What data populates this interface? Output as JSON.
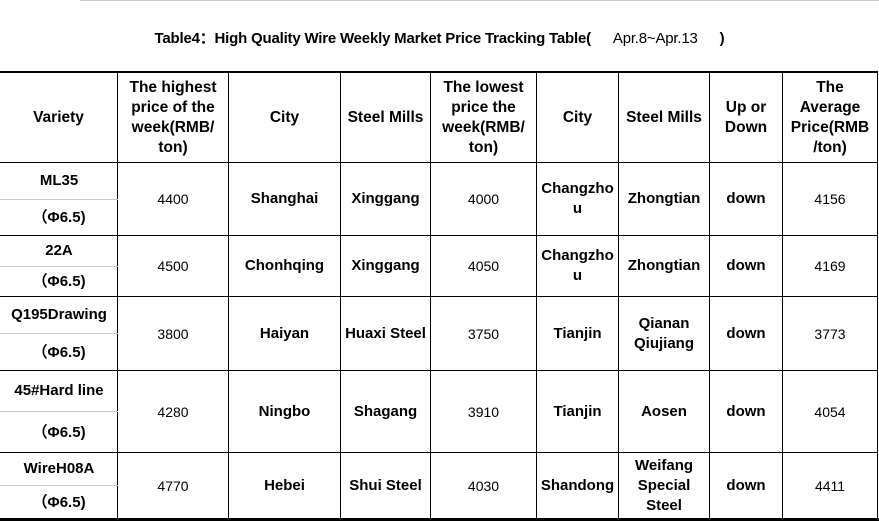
{
  "title": {
    "main": "Table4：High Quality Wire Weekly Market Price Tracking Table(",
    "date": "Apr.8~Apr.13",
    "close": ")"
  },
  "headers": [
    "Variety",
    "The highest price of the week(RMB/ ton)",
    "City",
    "Steel Mills",
    "The lowest price the week(RMB/ ton)",
    "City",
    "Steel Mills",
    "Up or Down",
    "The Average Price(RMB /ton)"
  ],
  "rows": [
    {
      "variety": "ML35",
      "spec": "（Φ6.5)",
      "high": "4400",
      "high_city": "Shanghai",
      "high_mill": "Xinggang",
      "low": "4000",
      "low_city": "Changzhou",
      "low_mill": "Zhongtian",
      "trend": "down",
      "avg": "4156"
    },
    {
      "variety": "22A",
      "spec": "（Φ6.5)",
      "high": "4500",
      "high_city": "Chonhqing",
      "high_mill": "Xinggang",
      "low": "4050",
      "low_city": "Changzhou",
      "low_mill": "Zhongtian",
      "trend": "down",
      "avg": "4169"
    },
    {
      "variety": "Q195Drawing",
      "spec": "（Φ6.5)",
      "high": "3800",
      "high_city": "Haiyan",
      "high_mill": "Huaxi Steel",
      "low": "3750",
      "low_city": "Tianjin",
      "low_mill": "Qianan Qiujiang",
      "trend": "down",
      "avg": "3773"
    },
    {
      "variety": "45#Hard line",
      "spec": "（Φ6.5)",
      "high": "4280",
      "high_city": "Ningbo",
      "high_mill": "Shagang",
      "low": "3910",
      "low_city": "Tianjin",
      "low_mill": "Aosen",
      "trend": "down",
      "avg": "4054"
    },
    {
      "variety": "WireH08A",
      "spec": "（Φ6.5)",
      "high": "4770",
      "high_city": "Hebei",
      "high_mill": "Shui Steel",
      "low": "4030",
      "low_city": "Shandong",
      "low_mill": "Weifang Special Steel",
      "trend": "down",
      "avg": "4411"
    }
  ]
}
